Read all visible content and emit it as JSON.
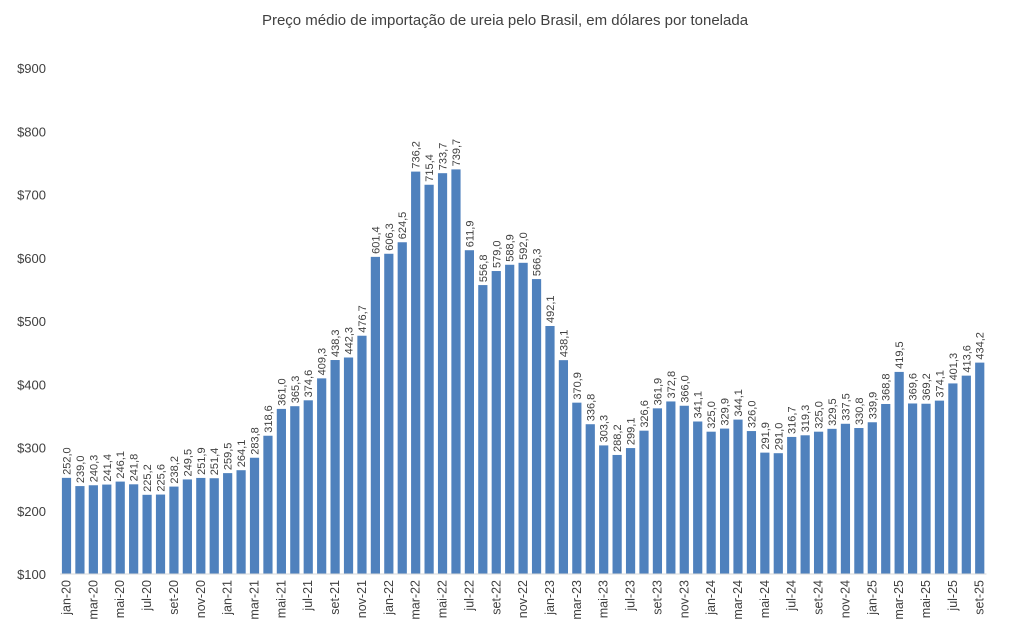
{
  "chart_data": {
    "type": "bar",
    "title": "Preço médio de importação de ureia pelo Brasil, em dólares por tonelada",
    "xlabel": "",
    "ylabel": "",
    "ylim": [
      100,
      900
    ],
    "yticks": [
      100,
      200,
      300,
      400,
      500,
      600,
      700,
      800,
      900
    ],
    "ytick_labels": [
      "$100",
      "$200",
      "$300",
      "$400",
      "$500",
      "$600",
      "$700",
      "$800",
      "$900"
    ],
    "grid": false,
    "bar_color": "#4f81bd",
    "tick_labels": [
      "jan-20",
      "mar-20",
      "mai-20",
      "jul-20",
      "set-20",
      "nov-20",
      "jan-21",
      "mar-21",
      "mai-21",
      "jul-21",
      "set-21",
      "nov-21",
      "jan-22",
      "mar-22",
      "mai-22",
      "jul-22",
      "set-22",
      "nov-22",
      "jan-23",
      "mar-23",
      "mai-23",
      "jul-23",
      "set-23",
      "nov-23",
      "jan-24",
      "mar-24",
      "mai-24",
      "jul-24",
      "set-24",
      "nov-24",
      "jan-25",
      "mar-25",
      "mai-25",
      "jul-25",
      "set-25"
    ],
    "values": [
      252.0,
      239.0,
      240.3,
      241.4,
      246.1,
      241.8,
      225.2,
      225.6,
      238.2,
      249.5,
      251.9,
      251.4,
      259.5,
      264.1,
      283.8,
      318.6,
      361.0,
      365.3,
      374.6,
      409.3,
      438.3,
      442.3,
      476.7,
      601.4,
      606.3,
      624.5,
      736.2,
      715.4,
      733.7,
      739.7,
      611.9,
      556.8,
      579.0,
      588.9,
      592.0,
      566.3,
      492.1,
      438.1,
      370.9,
      336.8,
      303.3,
      288.2,
      299.1,
      326.6,
      361.9,
      372.8,
      366.0,
      341.1,
      325.0,
      329.9,
      344.1,
      326.0,
      291.9,
      291.0,
      316.7,
      319.3,
      325.0,
      329.5,
      337.5,
      330.8,
      339.9,
      368.8,
      419.5,
      369.6,
      369.2,
      374.1,
      401.3,
      413.6,
      434.2
    ]
  }
}
